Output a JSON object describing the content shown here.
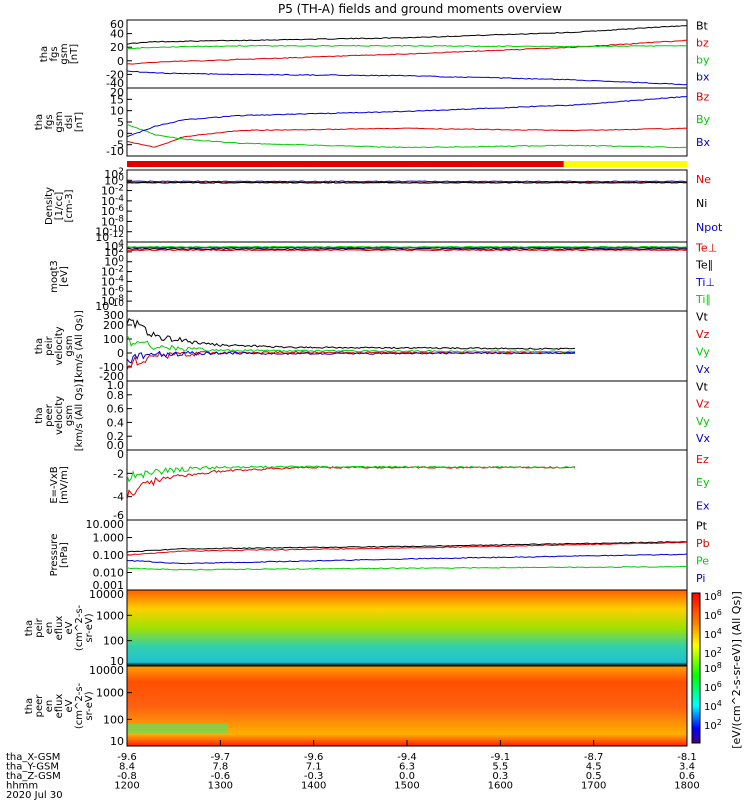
{
  "title": "P5 (TH-A) fields and ground moments overview",
  "colors": {
    "black": "#000000",
    "red": "#e00000",
    "green": "#00cc00",
    "blue": "#0000cc",
    "yellow": "#ffff00"
  },
  "chart_data": [
    {
      "type": "line",
      "id": "fgs_gsm_panel",
      "ylabel": [
        "tha",
        "fgs",
        "gsm",
        "[nT]"
      ],
      "ylim": [
        -40,
        60
      ],
      "yticks": [
        60,
        40,
        20,
        0,
        -20,
        -40
      ],
      "legend": [
        {
          "label": "Bt",
          "color": "black"
        },
        {
          "label": "bz",
          "color": "red"
        },
        {
          "label": "by",
          "color": "green"
        },
        {
          "label": "bx",
          "color": "blue"
        }
      ],
      "series": [
        {
          "name": "Bt",
          "color": "black",
          "x": [
            0,
            0.05,
            0.2,
            0.5,
            0.8,
            1
          ],
          "values": [
            25,
            28,
            30,
            34,
            42,
            52
          ]
        },
        {
          "name": "bz",
          "color": "red",
          "x": [
            0,
            0.05,
            0.2,
            0.5,
            0.8,
            1
          ],
          "values": [
            -5,
            -2,
            2,
            10,
            20,
            30
          ]
        },
        {
          "name": "by",
          "color": "green",
          "x": [
            0,
            0.05,
            0.2,
            0.5,
            0.8,
            1
          ],
          "values": [
            18,
            20,
            22,
            22,
            21,
            22
          ]
        },
        {
          "name": "bx",
          "color": "blue",
          "x": [
            0,
            0.05,
            0.2,
            0.5,
            0.8,
            1
          ],
          "values": [
            -15,
            -18,
            -20,
            -22,
            -28,
            -35
          ]
        }
      ]
    },
    {
      "type": "line",
      "id": "fgs_dsl_panel",
      "ylabel": [
        "tha",
        "fgs",
        "gsm",
        "dsl",
        "[nT]"
      ],
      "ylim": [
        -12,
        20
      ],
      "yticks": [
        20,
        15,
        10,
        5,
        0,
        -5,
        -10
      ],
      "legend": [
        {
          "label": "Bz",
          "color": "red"
        },
        {
          "label": "By",
          "color": "green"
        },
        {
          "label": "Bx",
          "color": "blue"
        }
      ],
      "series": [
        {
          "name": "Bz",
          "color": "red",
          "x": [
            0,
            0.05,
            0.1,
            0.2,
            0.5,
            0.8,
            1
          ],
          "values": [
            -5,
            -8,
            -3,
            0,
            1,
            0,
            1
          ]
        },
        {
          "name": "By",
          "color": "green",
          "x": [
            0,
            0.05,
            0.1,
            0.2,
            0.5,
            0.8,
            1
          ],
          "values": [
            3,
            -2,
            -4,
            -6,
            -8,
            -7,
            -8
          ]
        },
        {
          "name": "Bx",
          "color": "blue",
          "x": [
            0,
            0.05,
            0.1,
            0.2,
            0.5,
            0.8,
            1
          ],
          "values": [
            -3,
            2,
            5,
            7,
            9,
            12,
            16
          ]
        }
      ]
    },
    {
      "type": "line",
      "id": "density_panel",
      "ylabel": [
        "Density",
        "[1/cc]",
        "[cm-3]"
      ],
      "ylim_log": [
        -14,
        3
      ],
      "yticks": [
        "10^2",
        "10^0",
        "10^-2",
        "10^-4",
        "10^-6",
        "10^-8",
        "10^-10",
        "10^-12"
      ],
      "legend": [
        {
          "label": "Ne",
          "color": "red"
        },
        {
          "label": "Ni",
          "color": "black"
        },
        {
          "label": "Npot",
          "color": "blue"
        }
      ],
      "series": [
        {
          "name": "Ne",
          "color": "red",
          "x": [
            0,
            1
          ],
          "values_log": [
            0,
            0
          ]
        },
        {
          "name": "Ni",
          "color": "black",
          "x": [
            0,
            1
          ],
          "values_log": [
            0,
            0
          ]
        },
        {
          "name": "Npot",
          "color": "blue",
          "x": [
            0,
            1
          ],
          "values_log": [
            0.3,
            0.3
          ]
        }
      ]
    },
    {
      "type": "line",
      "id": "temperature_panel",
      "ylabel": [
        "moqt3",
        "[eV]"
      ],
      "ylim_log": [
        -12,
        5
      ],
      "yticks": [
        "10^4",
        "10^2",
        "10^0",
        "10^-2",
        "10^-4",
        "10^-6",
        "10^-8",
        "10^-10"
      ],
      "legend": [
        {
          "label": "Te⊥",
          "color": "red"
        },
        {
          "label": "Te∥",
          "color": "black"
        },
        {
          "label": "Ti⊥",
          "color": "blue"
        },
        {
          "label": "Ti∥",
          "color": "green"
        }
      ],
      "series": [
        {
          "name": "Te⊥",
          "color": "red",
          "x": [
            0,
            1
          ],
          "values_log": [
            3,
            3
          ]
        },
        {
          "name": "Te∥",
          "color": "black",
          "x": [
            0,
            1
          ],
          "values_log": [
            3.3,
            3.3
          ]
        },
        {
          "name": "Ti⊥",
          "color": "blue",
          "x": [
            0,
            1
          ],
          "values_log": [
            3.6,
            3.6
          ]
        },
        {
          "name": "Ti∥",
          "color": "green",
          "x": [
            0,
            1
          ],
          "values_log": [
            3.8,
            3.8
          ]
        }
      ]
    },
    {
      "type": "line",
      "id": "peir_velocity_panel",
      "ylabel": [
        "tha",
        "peir",
        "velocity",
        "gsm",
        "[km/s (All Qs)]"
      ],
      "ylim": [
        -200,
        300
      ],
      "yticks": [
        300,
        200,
        100,
        0,
        -100,
        -200
      ],
      "legend": [
        {
          "label": "Vt",
          "color": "black"
        },
        {
          "label": "Vz",
          "color": "red"
        },
        {
          "label": "Vy",
          "color": "green"
        },
        {
          "label": "Vx",
          "color": "blue"
        }
      ],
      "series": [
        {
          "name": "Vt",
          "color": "black",
          "x": [
            0,
            0.05,
            0.15,
            0.3,
            0.8
          ],
          "values": [
            250,
            120,
            60,
            40,
            30
          ]
        },
        {
          "name": "Vz",
          "color": "red",
          "x": [
            0,
            0.05,
            0.15,
            0.3,
            0.8
          ],
          "values": [
            -80,
            -20,
            0,
            5,
            0
          ]
        },
        {
          "name": "Vy",
          "color": "green",
          "x": [
            0,
            0.05,
            0.15,
            0.3,
            0.8
          ],
          "values": [
            100,
            40,
            20,
            15,
            10
          ]
        },
        {
          "name": "Vx",
          "color": "blue",
          "x": [
            0,
            0.05,
            0.15,
            0.3,
            0.8
          ],
          "values": [
            -40,
            -10,
            0,
            -5,
            0
          ]
        }
      ]
    },
    {
      "type": "line",
      "id": "peer_velocity_panel",
      "ylabel": [
        "tha",
        "peer",
        "velocity",
        "gsm",
        "[km/s (All Qs)]"
      ],
      "ylim": [
        0,
        1
      ],
      "yticks": [
        "1.0",
        "0.8",
        "0.6",
        "0.4",
        "0.2",
        "0.0"
      ],
      "legend": [
        {
          "label": "Vt",
          "color": "black"
        },
        {
          "label": "Vz",
          "color": "red"
        },
        {
          "label": "Vy",
          "color": "green"
        },
        {
          "label": "Vx",
          "color": "blue"
        }
      ],
      "series": []
    },
    {
      "type": "line",
      "id": "efield_panel",
      "ylabel": [
        "E=-VxB",
        "[mV/m]"
      ],
      "ylim": [
        -6,
        2
      ],
      "yticks": [
        0,
        -2,
        -4,
        -6
      ],
      "legend": [
        {
          "label": "Ez",
          "color": "red"
        },
        {
          "label": "Ey",
          "color": "green"
        },
        {
          "label": "Ex",
          "color": "blue"
        }
      ],
      "series": [
        {
          "name": "Ez",
          "color": "red",
          "x": [
            0,
            0.05,
            0.15,
            0.3,
            0.8
          ],
          "values": [
            -3,
            -1.5,
            -0.5,
            0,
            0
          ]
        },
        {
          "name": "Ey",
          "color": "green",
          "x": [
            0,
            0.05,
            0.15,
            0.3,
            0.8
          ],
          "values": [
            -1,
            -0.5,
            0,
            0.1,
            0
          ]
        }
      ]
    },
    {
      "type": "line",
      "id": "pressure_panel",
      "ylabel": [
        "Pressure",
        "[nPa]"
      ],
      "ylim_log": [
        -3,
        1.5
      ],
      "yticks": [
        "10.000",
        "1.000",
        "0.100",
        "0.010",
        "0.001"
      ],
      "legend": [
        {
          "label": "Pt",
          "color": "black"
        },
        {
          "label": "Pb",
          "color": "red"
        },
        {
          "label": "Pe",
          "color": "green"
        },
        {
          "label": "Pi",
          "color": "blue"
        }
      ],
      "series": [
        {
          "name": "Pt",
          "color": "black",
          "x": [
            0,
            0.1,
            0.5,
            1
          ],
          "values_log": [
            -0.55,
            -0.35,
            -0.2,
            0.1
          ]
        },
        {
          "name": "Pb",
          "color": "red",
          "x": [
            0,
            0.1,
            0.5,
            1
          ],
          "values_log": [
            -0.75,
            -0.5,
            -0.3,
            0.05
          ]
        },
        {
          "name": "Pe",
          "color": "green",
          "x": [
            0,
            0.1,
            0.5,
            1
          ],
          "values_log": [
            -1.6,
            -1.7,
            -1.6,
            -1.5
          ]
        },
        {
          "name": "Pi",
          "color": "blue",
          "x": [
            0,
            0.1,
            0.5,
            1
          ],
          "values_log": [
            -1.1,
            -1.3,
            -1.0,
            -0.7
          ]
        }
      ]
    },
    {
      "type": "heatmap",
      "id": "peir_spectrogram",
      "ylabel": [
        "tha",
        "peir",
        "en",
        "eflux",
        "eV",
        "(cm^2-s-",
        "sr-eV)"
      ],
      "yticks": [
        "10000",
        "1000",
        "100",
        "10"
      ]
    },
    {
      "type": "heatmap",
      "id": "peer_spectrogram",
      "ylabel": [
        "tha",
        "peer",
        "en",
        "eflux",
        "eV",
        "(cm^2-s-",
        "sr-eV)"
      ],
      "yticks": [
        "10000",
        "1000",
        "100",
        "10"
      ]
    }
  ],
  "colorbar": {
    "ticks": [
      "10^8",
      "10^6",
      "10^4",
      "10^2"
    ],
    "label": "[eV/(cm^2-s-sr-eV)] (All Qs)]"
  },
  "xaxis": {
    "rows": [
      {
        "label": "tha_X-GSM",
        "values": [
          "-9.6",
          "-9.7",
          "-9.6",
          "-9.4",
          "-9.1",
          "-8.7",
          "-8.1"
        ]
      },
      {
        "label": "tha_Y-GSM",
        "values": [
          "8.4",
          "7.8",
          "7.1",
          "6.3",
          "5.5",
          "4.5",
          "3.4"
        ]
      },
      {
        "label": "tha_Z-GSM",
        "values": [
          "-0.8",
          "-0.6",
          "-0.3",
          "0.0",
          "0.3",
          "0.5",
          "0.6"
        ]
      },
      {
        "label": "hhmm",
        "values": [
          "1200",
          "1300",
          "1400",
          "1500",
          "1600",
          "1700",
          "1800"
        ]
      }
    ],
    "date": "2020 Jul 30"
  },
  "mode_bar": {
    "segments": [
      {
        "color": "red",
        "to": 0.78
      },
      {
        "color": "yellow",
        "to": 1
      }
    ]
  }
}
